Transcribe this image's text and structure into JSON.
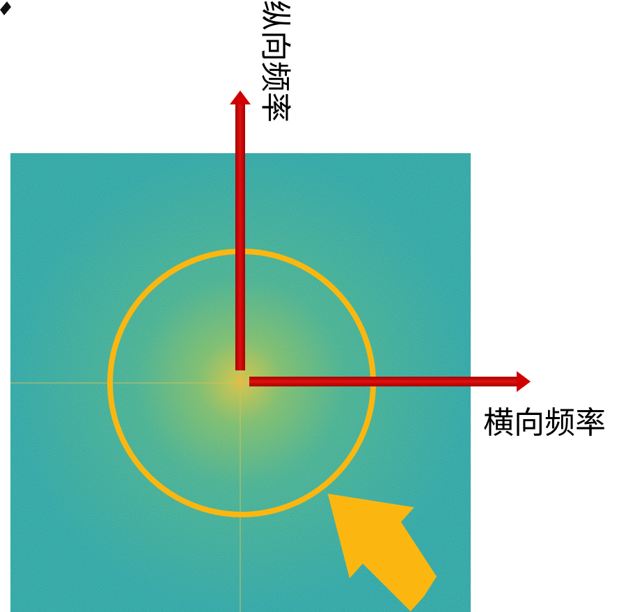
{
  "labels": {
    "vertical_axis": "纵向频率",
    "horizontal_axis": "横向频率"
  }
}
